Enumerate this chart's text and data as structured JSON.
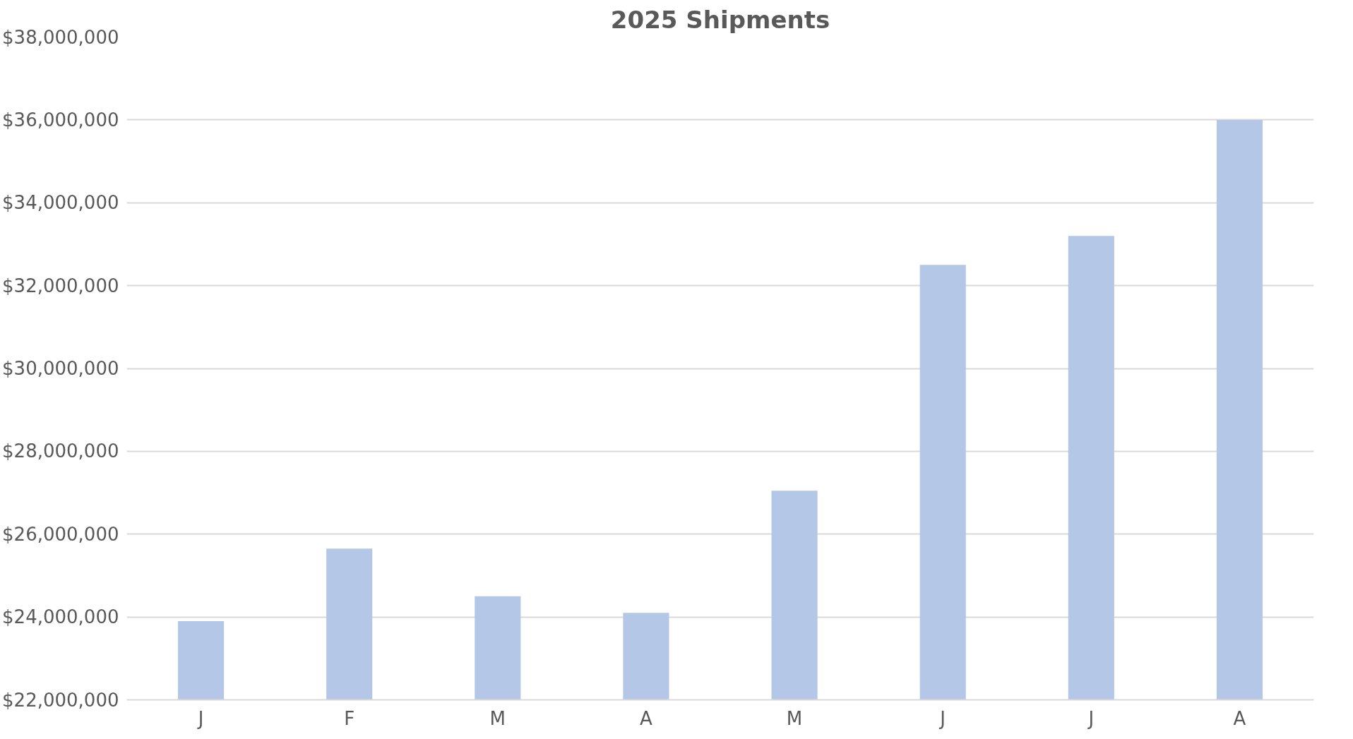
{
  "chart_data": {
    "type": "bar",
    "title": "2025 Shipments",
    "categories": [
      "J",
      "F",
      "M",
      "A",
      "M",
      "J",
      "J",
      "A"
    ],
    "values": [
      23900000,
      25650000,
      24500000,
      24100000,
      27050000,
      32500000,
      33200000,
      36000000
    ],
    "color": "#b4c7e7",
    "ylim": [
      22000000,
      38000000
    ],
    "yticks": [
      {
        "value": 22000000,
        "label": "$22,000,000"
      },
      {
        "value": 24000000,
        "label": "$24,000,000"
      },
      {
        "value": 26000000,
        "label": "$26,000,000"
      },
      {
        "value": 28000000,
        "label": "$28,000,000"
      },
      {
        "value": 30000000,
        "label": "$30,000,000"
      },
      {
        "value": 32000000,
        "label": "$32,000,000"
      },
      {
        "value": 34000000,
        "label": "$34,000,000"
      },
      {
        "value": 36000000,
        "label": "$36,000,000"
      },
      {
        "value": 38000000,
        "label": "$38,000,000"
      }
    ],
    "grid": "y"
  }
}
